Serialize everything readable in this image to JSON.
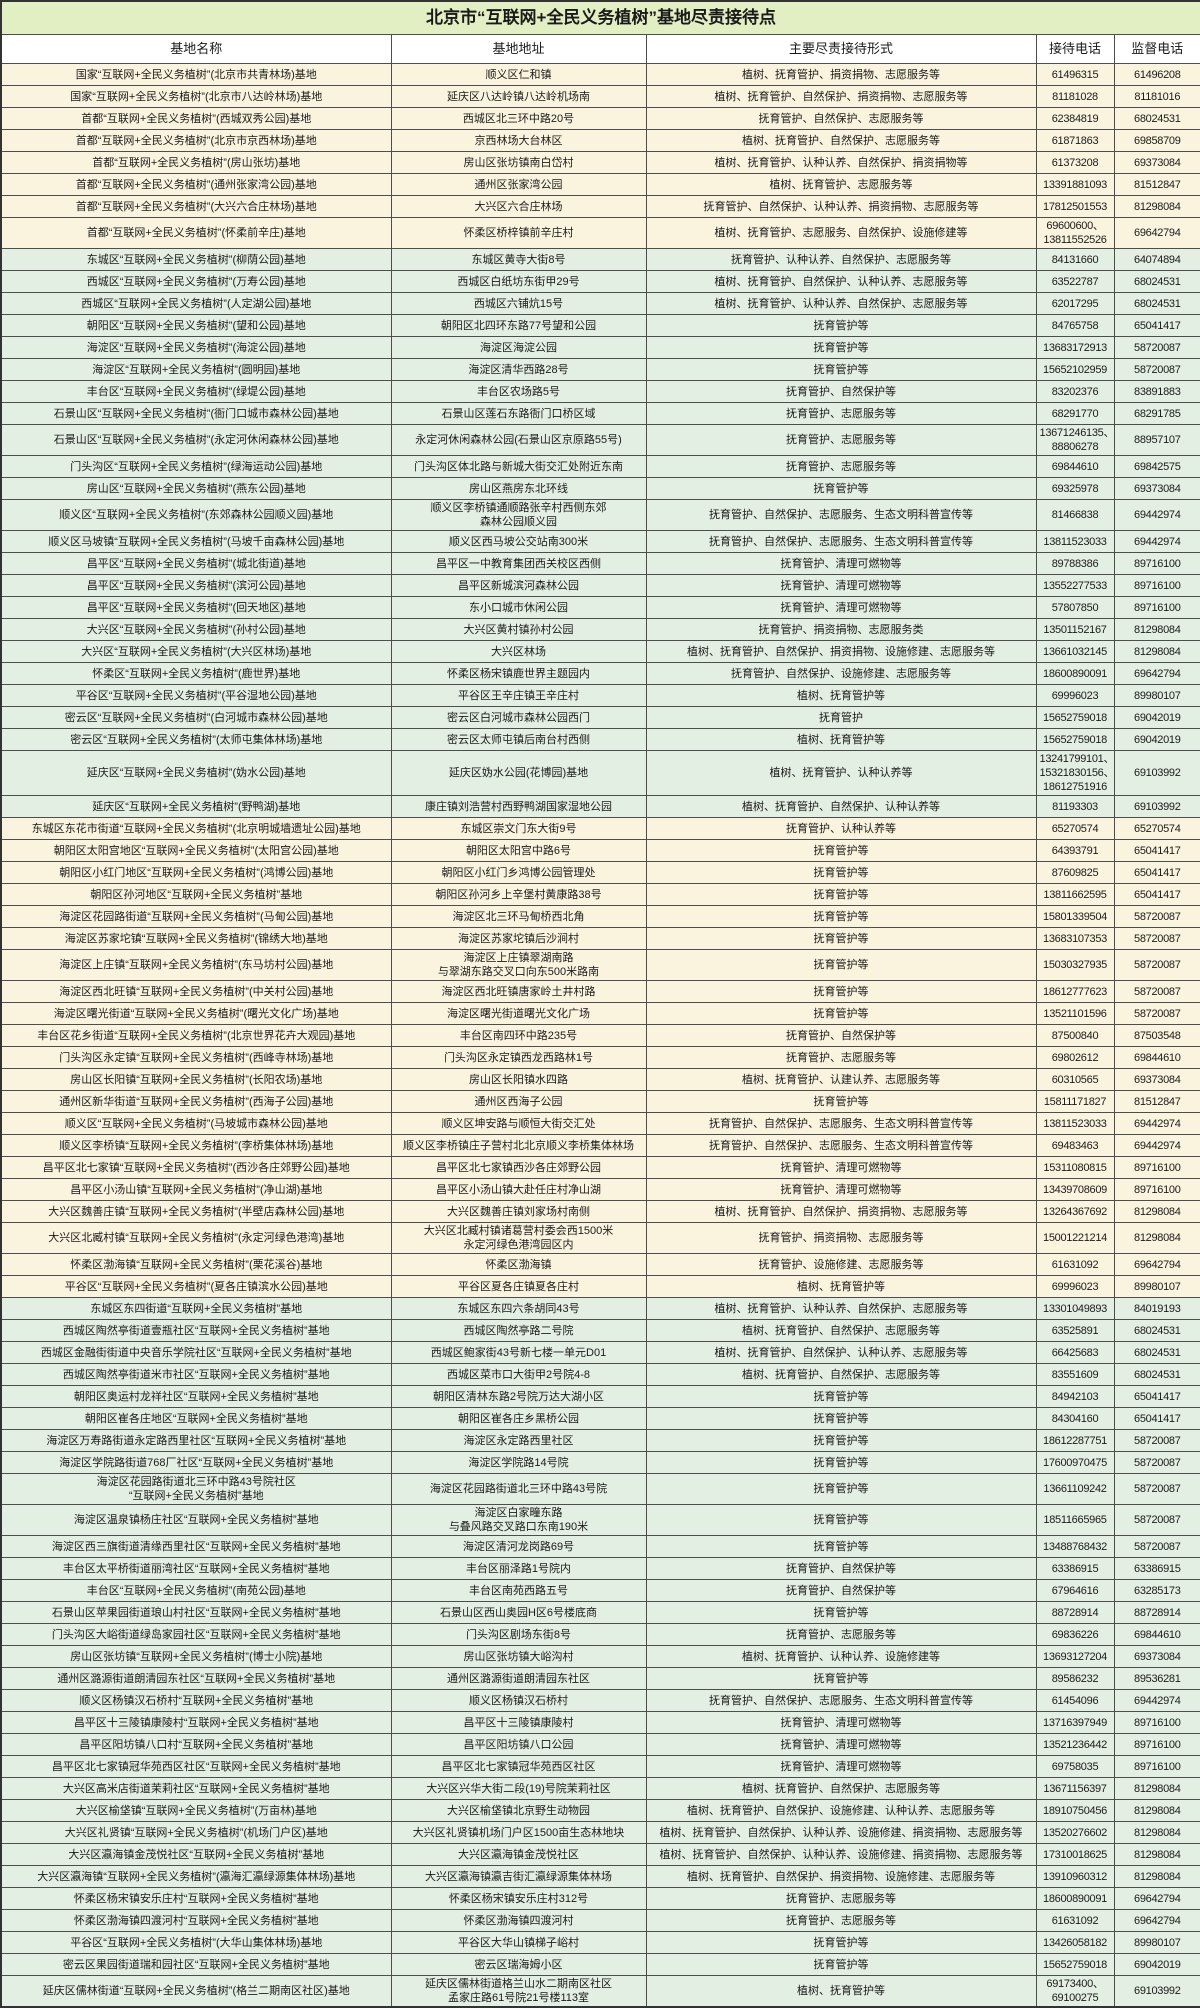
{
  "title": "北京市“互联网+全民义务植树”基地尽责接待点",
  "columns": [
    "基地名称",
    "基地地址",
    "主要尽责接待形式",
    "接待电话",
    "监督电话"
  ],
  "colors": {
    "title_bg": "#e2efc3",
    "header_bg": "#ffffff",
    "row_cream": "#faf4de",
    "row_green": "#e4efe3",
    "border": "#4d4d4d"
  },
  "rows": [
    {
      "band": "cream",
      "name": "国家“互联网+全民义务植树”(北京市共青林场)基地",
      "addr": "顺义区仁和镇",
      "forms": "植树、抚育管护、捐资捐物、志愿服务等",
      "phone": "61496315",
      "sup": "61496208"
    },
    {
      "band": "cream",
      "name": "国家“互联网+全民义务植树”(北京市八达岭林场)基地",
      "addr": "延庆区八达岭镇八达岭机场南",
      "forms": "植树、抚育管护、自然保护、捐资捐物、志愿服务等",
      "phone": "81181028",
      "sup": "81181016"
    },
    {
      "band": "cream",
      "name": "首都“互联网+全民义务植树”(西城双秀公园)基地",
      "addr": "西城区北三环中路20号",
      "forms": "抚育管护、自然保护、志愿服务等",
      "phone": "62384819",
      "sup": "68024531"
    },
    {
      "band": "cream",
      "name": "首都“互联网+全民义务植树”(北京市京西林场)基地",
      "addr": "京西林场大台林区",
      "forms": "植树、抚育管护、自然保护、志愿服务等",
      "phone": "61871863",
      "sup": "69858709"
    },
    {
      "band": "cream",
      "name": "首都“互联网+全民义务植树”(房山张坊)基地",
      "addr": "房山区张坊镇南白岱村",
      "forms": "植树、抚育管护、认种认养、自然保护、捐资捐物等",
      "phone": "61373208",
      "sup": "69373084"
    },
    {
      "band": "cream",
      "name": "首都“互联网+全民义务植树”(通州张家湾公园)基地",
      "addr": "通州区张家湾公园",
      "forms": "植树、抚育管护、志愿服务等",
      "phone": "13391881093",
      "sup": "81512847"
    },
    {
      "band": "cream",
      "name": "首都“互联网+全民义务植树”(大兴六合庄林场)基地",
      "addr": "大兴区六合庄林场",
      "forms": "抚育管护、自然保护、认种认养、捐资捐物、志愿服务等",
      "phone": "17812501553",
      "sup": "81298084"
    },
    {
      "band": "cream",
      "name": "首都“互联网+全民义务植树”(怀柔前辛庄)基地",
      "addr": "怀柔区桥梓镇前辛庄村",
      "forms": "植树、抚育管护、志愿服务、自然保护、设施修建等",
      "phone": "69600600、\n13811552526",
      "sup": "69642794"
    },
    {
      "band": "green",
      "name": "东城区“互联网+全民义务植树”(柳荫公园)基地",
      "addr": "东城区黄寺大街8号",
      "forms": "抚育管护、认种认养、自然保护、志愿服务等",
      "phone": "84131660",
      "sup": "64074894"
    },
    {
      "band": "green",
      "name": "西城区“互联网+全民义务植树”(万寿公园)基地",
      "addr": "西城区白纸坊东街甲29号",
      "forms": "植树、抚育管护、自然保护、认种认养、志愿服务等",
      "phone": "63522787",
      "sup": "68024531"
    },
    {
      "band": "green",
      "name": "西城区“互联网+全民义务植树”(人定湖公园)基地",
      "addr": "西城区六铺炕15号",
      "forms": "植树、抚育管护、认种认养、自然保护、志愿服务等",
      "phone": "62017295",
      "sup": "68024531"
    },
    {
      "band": "green",
      "name": "朝阳区“互联网+全民义务植树”(望和公园)基地",
      "addr": "朝阳区北四环东路77号望和公园",
      "forms": "抚育管护等",
      "phone": "84765758",
      "sup": "65041417"
    },
    {
      "band": "green",
      "name": "海淀区“互联网+全民义务植树”(海淀公园)基地",
      "addr": "海淀区海淀公园",
      "forms": "抚育管护等",
      "phone": "13683172913",
      "sup": "58720087"
    },
    {
      "band": "green",
      "name": "海淀区“互联网+全民义务植树”(圆明园)基地",
      "addr": "海淀区清华西路28号",
      "forms": "抚育管护等",
      "phone": "15652102959",
      "sup": "58720087"
    },
    {
      "band": "green",
      "name": "丰台区“互联网+全民义务植树”(绿堤公园)基地",
      "addr": "丰台区农场路5号",
      "forms": "抚育管护、自然保护等",
      "phone": "83202376",
      "sup": "83891883"
    },
    {
      "band": "green",
      "name": "石景山区“互联网+全民义务植树”(衙门口城市森林公园)基地",
      "addr": "石景山区莲石东路衙门口桥区域",
      "forms": "抚育管护、志愿服务等",
      "phone": "68291770",
      "sup": "68291785"
    },
    {
      "band": "green",
      "name": "石景山区“互联网+全民义务植树”(永定河休闲森林公园)基地",
      "addr": "永定河休闲森林公园(石景山区京原路55号)",
      "forms": "抚育管护、志愿服务等",
      "phone": "13671246135、\n88806278",
      "sup": "88957107"
    },
    {
      "band": "green",
      "name": "门头沟区“互联网+全民义务植树”(绿海运动公园)基地",
      "addr": "门头沟区体北路与新城大街交汇处附近东南",
      "forms": "抚育管护、志愿服务等",
      "phone": "69844610",
      "sup": "69842575"
    },
    {
      "band": "green",
      "name": "房山区“互联网+全民义务植树”(燕东公园)基地",
      "addr": "房山区燕房东北环线",
      "forms": "抚育管护等",
      "phone": "69325978",
      "sup": "69373084"
    },
    {
      "band": "green",
      "name": "顺义区“互联网+全民义务植树”(东郊森林公园顺义园)基地",
      "addr": "顺义区李桥镇通顺路张辛村西侧东郊\n森林公园顺义园",
      "forms": "抚育管护、自然保护、志愿服务、生态文明科普宣传等",
      "phone": "81466838",
      "sup": "69442974"
    },
    {
      "band": "green",
      "name": "顺义区马坡镇“互联网+全民义务植树”(马坡千亩森林公园)基地",
      "addr": "顺义区西马坡公交站南300米",
      "forms": "抚育管护、自然保护、志愿服务、生态文明科普宣传等",
      "phone": "13811523033",
      "sup": "69442974"
    },
    {
      "band": "green",
      "name": "昌平区“互联网+全民义务植树”(城北街道)基地",
      "addr": "昌平区一中教育集团西关校区西侧",
      "forms": "抚育管护、清理可燃物等",
      "phone": "89788386",
      "sup": "89716100"
    },
    {
      "band": "green",
      "name": "昌平区“互联网+全民义务植树”(滨河公园)基地",
      "addr": "昌平区新城滨河森林公园",
      "forms": "抚育管护、清理可燃物等",
      "phone": "13552277533",
      "sup": "89716100"
    },
    {
      "band": "green",
      "name": "昌平区“互联网+全民义务植树”(回天地区)基地",
      "addr": "东小口城市休闲公园",
      "forms": "抚育管护、清理可燃物等",
      "phone": "57807850",
      "sup": "89716100"
    },
    {
      "band": "green",
      "name": "大兴区“互联网+全民义务植树”(孙村公园)基地",
      "addr": "大兴区黄村镇孙村公园",
      "forms": "抚育管护、捐资捐物、志愿服务类",
      "phone": "13501152167",
      "sup": "81298084"
    },
    {
      "band": "green",
      "name": "大兴区“互联网+全民义务植树”(大兴区林场)基地",
      "addr": "大兴区林场",
      "forms": "植树、抚育管护、自然保护、捐资捐物、设施修建、志愿服务等",
      "phone": "13661032145",
      "sup": "81298084"
    },
    {
      "band": "green",
      "name": "怀柔区“互联网+全民义务植树”(鹿世界)基地",
      "addr": "怀柔区杨宋镇鹿世界主题园内",
      "forms": "抚育管护、自然保护、设施修建、志愿服务等",
      "phone": "18600890091",
      "sup": "69642794"
    },
    {
      "band": "green",
      "name": "平谷区“互联网+全民义务植树”(平谷湿地公园)基地",
      "addr": "平谷区王辛庄镇王辛庄村",
      "forms": "植树、抚育管护等",
      "phone": "69996023",
      "sup": "89980107"
    },
    {
      "band": "green",
      "name": "密云区“互联网+全民义务植树”(白河城市森林公园)基地",
      "addr": "密云区白河城市森林公园西门",
      "forms": "抚育管护",
      "phone": "15652759018",
      "sup": "69042019"
    },
    {
      "band": "green",
      "name": "密云区“互联网+全民义务植树”(太师屯集体林场)基地",
      "addr": "密云区太师屯镇后南台村西侧",
      "forms": "植树、抚育管护等",
      "phone": "15652759018",
      "sup": "69042019"
    },
    {
      "band": "green",
      "name": "延庆区“互联网+全民义务植树”(妫水公园)基地",
      "addr": "延庆区妫水公园(花博园)基地",
      "forms": "植树、抚育管护、认种认养等",
      "phone": "13241799101、\n15321830156、\n18612751916",
      "sup": "69103992"
    },
    {
      "band": "green",
      "name": "延庆区“互联网+全民义务植树”(野鸭湖)基地",
      "addr": "康庄镇刘浩营村西野鸭湖国家湿地公园",
      "forms": "植树、抚育管护、自然保护、认种认养等",
      "phone": "81193303",
      "sup": "69103992"
    },
    {
      "band": "cream",
      "name": "东城区东花市街道“互联网+全民义务植树”(北京明城墙遗址公园)基地",
      "addr": "东城区崇文门东大街9号",
      "forms": "抚育管护、认种认养等",
      "phone": "65270574",
      "sup": "65270574"
    },
    {
      "band": "cream",
      "name": "朝阳区太阳宫地区“互联网+全民义务植树”(太阳宫公园)基地",
      "addr": "朝阳区太阳宫中路6号",
      "forms": "抚育管护等",
      "phone": "64393791",
      "sup": "65041417"
    },
    {
      "band": "cream",
      "name": "朝阳区小红门地区“互联网+全民义务植树”(鸿博公园)基地",
      "addr": "朝阳区小红门乡鸿博公园管理处",
      "forms": "抚育管护等",
      "phone": "87609825",
      "sup": "65041417"
    },
    {
      "band": "cream",
      "name": "朝阳区孙河地区“互联网+全民义务植树”基地",
      "addr": "朝阳区孙河乡上辛堡村黄康路38号",
      "forms": "抚育管护等",
      "phone": "13811662595",
      "sup": "65041417"
    },
    {
      "band": "cream",
      "name": "海淀区花园路街道“互联网+全民义务植树”(马甸公园)基地",
      "addr": "海淀区北三环马甸桥西北角",
      "forms": "抚育管护等",
      "phone": "15801339504",
      "sup": "58720087"
    },
    {
      "band": "cream",
      "name": "海淀区苏家坨镇“互联网+全民义务植树”(锦绣大地)基地",
      "addr": "海淀区苏家坨镇后沙涧村",
      "forms": "抚育管护等",
      "phone": "13683107353",
      "sup": "58720087"
    },
    {
      "band": "cream",
      "name": "海淀区上庄镇“互联网+全民义务植树”(东马坊村公园)基地",
      "addr": "海淀区上庄镇翠湖南路\n与翠湖东路交叉口向东500米路南",
      "forms": "抚育管护等",
      "phone": "15030327935",
      "sup": "58720087"
    },
    {
      "band": "cream",
      "name": "海淀区西北旺镇“互联网+全民义务植树”(中关村公园)基地",
      "addr": "海淀区西北旺镇唐家岭土井村路",
      "forms": "抚育管护等",
      "phone": "18612777623",
      "sup": "58720087"
    },
    {
      "band": "cream",
      "name": "海淀区曙光街道“互联网+全民义务植树”(曙光文化广场)基地",
      "addr": "海淀区曙光街道曙光文化广场",
      "forms": "抚育管护等",
      "phone": "13521101596",
      "sup": "58720087"
    },
    {
      "band": "cream",
      "name": "丰台区花乡街道“互联网+全民义务植树”(北京世界花卉大观园)基地",
      "addr": "丰台区南四环中路235号",
      "forms": "抚育管护、自然保护等",
      "phone": "87500840",
      "sup": "87503548"
    },
    {
      "band": "cream",
      "name": "门头沟区永定镇“互联网+全民义务植树”(西峰寺林场)基地",
      "addr": "门头沟区永定镇西龙西路林1号",
      "forms": "抚育管护、志愿服务等",
      "phone": "69802612",
      "sup": "69844610"
    },
    {
      "band": "cream",
      "name": "房山区长阳镇“互联网+全民义务植树”(长阳农场)基地",
      "addr": "房山区长阳镇水四路",
      "forms": "植树、抚育管护、认建认养、志愿服务等",
      "phone": "60310565",
      "sup": "69373084"
    },
    {
      "band": "cream",
      "name": "通州区新华街道“互联网+全民义务植树”(西海子公园)基地",
      "addr": "通州区西海子公园",
      "forms": "抚育管护等",
      "phone": "15811171827",
      "sup": "81512847"
    },
    {
      "band": "cream",
      "name": "顺义区“互联网+全民义务植树”(马坡城市森林公园)基地",
      "addr": "顺义区坤安路与顺恒大街交汇处",
      "forms": "抚育管护、自然保护、志愿服务、生态文明科普宣传等",
      "phone": "13811523033",
      "sup": "69442974"
    },
    {
      "band": "cream",
      "name": "顺义区李桥镇“互联网+全民义务植树”(李桥集体林场)基地",
      "addr": "顺义区李桥镇庄子营村北北京顺义李桥集体林场",
      "forms": "抚育管护、自然保护、志愿服务、生态文明科普宣传等",
      "phone": "69483463",
      "sup": "69442974"
    },
    {
      "band": "cream",
      "name": "昌平区北七家镇“互联网+全民义务植树”(西沙各庄郊野公园)基地",
      "addr": "昌平区北七家镇西沙各庄郊野公园",
      "forms": "抚育管护、清理可燃物等",
      "phone": "15311080815",
      "sup": "89716100"
    },
    {
      "band": "cream",
      "name": "昌平区小汤山镇“互联网+全民义务植树”(净山湖)基地",
      "addr": "昌平区小汤山镇大赴任庄村净山湖",
      "forms": "抚育管护、清理可燃物等",
      "phone": "13439708609",
      "sup": "89716100"
    },
    {
      "band": "cream",
      "name": "大兴区魏善庄镇“互联网+全民义务植树”(半壁店森林公园)基地",
      "addr": "大兴区魏善庄镇刘家场村南侧",
      "forms": "植树、抚育管护、自然保护、捐资捐物、志愿服务等",
      "phone": "13264367692",
      "sup": "81298084"
    },
    {
      "band": "cream",
      "name": "大兴区北臧村镇“互联网+全民义务植树”(永定河绿色港湾)基地",
      "addr": "大兴区北臧村镇诸葛营村委会西1500米\n永定河绿色港湾园区内",
      "forms": "抚育管护、捐资捐物、志愿服务等",
      "phone": "15001221214",
      "sup": "81298084"
    },
    {
      "band": "cream",
      "name": "怀柔区渤海镇“互联网+全民义务植树”(栗花溪谷)基地",
      "addr": "怀柔区渤海镇",
      "forms": "抚育管护、设施修建、志愿服务等",
      "phone": "61631092",
      "sup": "69642794"
    },
    {
      "band": "cream",
      "name": "平谷区“互联网+全民义务植树”(夏各庄镇滨水公园)基地",
      "addr": "平谷区夏各庄镇夏各庄村",
      "forms": "植树、抚育管护等",
      "phone": "69996023",
      "sup": "89980107"
    },
    {
      "band": "green",
      "name": "东城区东四街道“互联网+全民义务植树”基地",
      "addr": "东城区东四六条胡同43号",
      "forms": "植树、抚育管护、认种认养、自然保护、志愿服务等",
      "phone": "13301049893",
      "sup": "84019193"
    },
    {
      "band": "green",
      "name": "西城区陶然亭街道壹瓶社区“互联网+全民义务植树”基地",
      "addr": "西城区陶然亭路二号院",
      "forms": "植树、抚育管护、自然保护、志愿服务等",
      "phone": "63525891",
      "sup": "68024531"
    },
    {
      "band": "green",
      "name": "西城区金融街街道中央音乐学院社区“互联网+全民义务植树”基地",
      "addr": "西城区鲍家街43号新七楼一单元D01",
      "forms": "植树、抚育管护、自然保护、认种认养、志愿服务等",
      "phone": "66425683",
      "sup": "68024531"
    },
    {
      "band": "green",
      "name": "西城区陶然亭街道米市社区“互联网+全民义务植树”基地",
      "addr": "西城区菜市口大街甲2号院4-8",
      "forms": "植树、抚育管护、自然保护、志愿服务等",
      "phone": "83551609",
      "sup": "68024531"
    },
    {
      "band": "green",
      "name": "朝阳区奥运村龙祥社区“互联网+全民义务植树”基地",
      "addr": "朝阳区清林东路2号院万达大湖小区",
      "forms": "抚育管护等",
      "phone": "84942103",
      "sup": "65041417"
    },
    {
      "band": "green",
      "name": "朝阳区崔各庄地区“互联网+全民义务植树”基地",
      "addr": "朝阳区崔各庄乡黑桥公园",
      "forms": "抚育管护等",
      "phone": "84304160",
      "sup": "65041417"
    },
    {
      "band": "green",
      "name": "海淀区万寿路街道永定路西里社区“互联网+全民义务植树”基地",
      "addr": "海淀区永定路西里社区",
      "forms": "抚育管护等",
      "phone": "18612287751",
      "sup": "58720087"
    },
    {
      "band": "green",
      "name": "海淀区学院路街道768厂社区“互联网+全民义务植树”基地",
      "addr": "海淀区学院路14号院",
      "forms": "抚育管护等",
      "phone": "17600970475",
      "sup": "58720087"
    },
    {
      "band": "green",
      "name": "海淀区花园路街道北三环中路43号院社区\n“互联网+全民义务植树”基地",
      "addr": "海淀区花园路街道北三环中路43号院",
      "forms": "抚育管护等",
      "phone": "13661109242",
      "sup": "58720087"
    },
    {
      "band": "green",
      "name": "海淀区温泉镇杨庄社区“互联网+全民义务植树”基地",
      "addr": "海淀区白家疃东路\n与叠风路交叉路口东南190米",
      "forms": "抚育管护等",
      "phone": "18511665965",
      "sup": "58720087"
    },
    {
      "band": "green",
      "name": "海淀区西三旗街道清缘西里社区“互联网+全民义务植树”基地",
      "addr": "海淀区清河龙岗路69号",
      "forms": "抚育管护等",
      "phone": "13488768432",
      "sup": "58720087"
    },
    {
      "band": "green",
      "name": "丰台区太平桥街道丽湾社区“互联网+全民义务植树”基地",
      "addr": "丰台区丽泽路1号院内",
      "forms": "抚育管护、自然保护等",
      "phone": "63386915",
      "sup": "63386915"
    },
    {
      "band": "green",
      "name": "丰台区“互联网+全民义务植树”(南苑公园)基地",
      "addr": "丰台区南苑西路五号",
      "forms": "抚育管护、自然保护等",
      "phone": "67964616",
      "sup": "63285173"
    },
    {
      "band": "green",
      "name": "石景山区苹果园街道琅山村社区“互联网+全民义务植树”基地",
      "addr": "石景山区西山奥园H区6号楼底商",
      "forms": "抚育管护等",
      "phone": "88728914",
      "sup": "88728914"
    },
    {
      "band": "green",
      "name": "门头沟区大峪街道绿岛家园社区“互联网+全民义务植树”基地",
      "addr": "门头沟区剧场东街8号",
      "forms": "抚育管护、志愿服务等",
      "phone": "69836226",
      "sup": "69844610"
    },
    {
      "band": "green",
      "name": "房山区张坊镇“互联网+全民义务植树”(博士小院)基地",
      "addr": "房山区张坊镇大峪沟村",
      "forms": "植树、抚育管护、认种认养、设施修建等",
      "phone": "13693127204",
      "sup": "69373084"
    },
    {
      "band": "green",
      "name": "通州区潞源街道朗清园东社区“互联网+全民义务植树”基地",
      "addr": "通州区潞源街道朗清园东社区",
      "forms": "抚育管护等",
      "phone": "89586232",
      "sup": "89536281"
    },
    {
      "band": "green",
      "name": "顺义区杨镇汉石桥村“互联网+全民义务植树”基地",
      "addr": "顺义区杨镇汉石桥村",
      "forms": "抚育管护、自然保护、志愿服务、生态文明科普宣传等",
      "phone": "61454096",
      "sup": "69442974"
    },
    {
      "band": "green",
      "name": "昌平区十三陵镇康陵村“互联网+全民义务植树”基地",
      "addr": "昌平区十三陵镇康陵村",
      "forms": "抚育管护、清理可燃物等",
      "phone": "13716397949",
      "sup": "89716100"
    },
    {
      "band": "green",
      "name": "昌平区阳坊镇八口村“互联网+全民义务植树”基地",
      "addr": "昌平区阳坊镇八口公园",
      "forms": "抚育管护、清理可燃物等",
      "phone": "13521236442",
      "sup": "89716100"
    },
    {
      "band": "green",
      "name": "昌平区北七家镇冠华苑西区社区“互联网+全民义务植树”基地",
      "addr": "昌平区北七家镇冠华苑西区社区",
      "forms": "抚育管护、清理可燃物等",
      "phone": "69758035",
      "sup": "89716100"
    },
    {
      "band": "green",
      "name": "大兴区高米店街道茉莉社区“互联网+全民义务植树”基地",
      "addr": "大兴区兴华大街二段(19)号院茉莉社区",
      "forms": "植树、抚育管护、自然保护、志愿服务等",
      "phone": "13671156397",
      "sup": "81298084"
    },
    {
      "band": "green",
      "name": "大兴区榆垡镇“互联网+全民义务植树”(万亩林)基地",
      "addr": "大兴区榆垡镇北京野生动物园",
      "forms": "植树、抚育管护、自然保护、设施修建、认种认养、志愿服务等",
      "phone": "18910750456",
      "sup": "81298084"
    },
    {
      "band": "green",
      "name": "大兴区礼贤镇“互联网+全民义务植树”(机场门户区)基地",
      "addr": "大兴区礼贤镇机场门户区1500亩生态林地块",
      "forms": "植树、抚育管护、自然保护、认种认养、设施修建、捐资捐物、志愿服务等",
      "phone": "13520276602",
      "sup": "81298084"
    },
    {
      "band": "green",
      "name": "大兴区瀛海镇金茂悦社区“互联网+全民义务植树”基地",
      "addr": "大兴区瀛海镇金茂悦社区",
      "forms": "植树、抚育管护、自然保护、认种认养、设施修建、捐资捐物、志愿服务等",
      "phone": "17310018625",
      "sup": "81298084"
    },
    {
      "band": "green",
      "name": "大兴区瀛海镇“互联网+全民义务植树”(瀛海汇瀛绿源集体林场)基地",
      "addr": "大兴区瀛海镇瀛吉街汇瀛绿源集体林场",
      "forms": "植树、抚育管护、自然保护、捐资捐物、设施修建、志愿服务等",
      "phone": "13910960312",
      "sup": "81298084"
    },
    {
      "band": "green",
      "name": "怀柔区杨宋镇安乐庄村“互联网+全民义务植树”基地",
      "addr": "怀柔区杨宋镇安乐庄村312号",
      "forms": "抚育管护、志愿服务等",
      "phone": "18600890091",
      "sup": "69642794"
    },
    {
      "band": "green",
      "name": "怀柔区渤海镇四渡河村“互联网+全民义务植树”基地",
      "addr": "怀柔区渤海镇四渡河村",
      "forms": "抚育管护、志愿服务等",
      "phone": "61631092",
      "sup": "69642794"
    },
    {
      "band": "green",
      "name": "平谷区“互联网+全民义务植树”(大华山集体林场)基地",
      "addr": "平谷区大华山镇梯子峪村",
      "forms": "抚育管护等",
      "phone": "13426058182",
      "sup": "89980107"
    },
    {
      "band": "green",
      "name": "密云区果园街道瑞和园社区“互联网+全民义务植树”基地",
      "addr": "密云区瑞海姆小区",
      "forms": "抚育管护等",
      "phone": "15652759018",
      "sup": "69042019"
    },
    {
      "band": "green",
      "name": "延庆区儒林街道“互联网+全民义务植树”(格兰二期南区社区)基地",
      "addr": "延庆区儒林街道格兰山水二期南区社区\n孟家庄路61号院21号楼113室",
      "forms": "植树、抚育管护等",
      "phone": "69173400、\n69100275",
      "sup": "69103992"
    }
  ]
}
